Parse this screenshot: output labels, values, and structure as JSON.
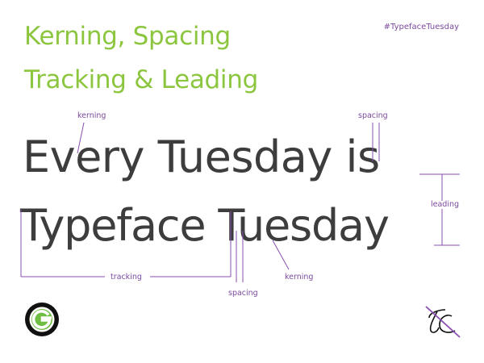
{
  "title": {
    "line1": "Kerning, Spacing",
    "line2": "Tracking & Leading"
  },
  "hashtag": "#TypefaceTuesday",
  "sample": {
    "line1": "Every Tuesday is",
    "line2": "Typeface Tuesday"
  },
  "annotations": {
    "kerning_top": "kerning",
    "spacing_top": "spacing",
    "leading": "leading",
    "tracking": "tracking",
    "spacing_bottom": "spacing",
    "kerning_bottom": "kerning"
  },
  "logos": {
    "left_icon": "g-logo-icon",
    "right_icon": "tc-monogram-icon"
  },
  "colors": {
    "title_green": "#8cc63f",
    "hashtag_purple": "#7b4a9e",
    "annotation_purple": "#8a4fb0",
    "label_purple": "#7b4a9e",
    "sample_text": "#3d3d3d",
    "logo_green": "#6fbe44",
    "logo_black": "#111111"
  }
}
